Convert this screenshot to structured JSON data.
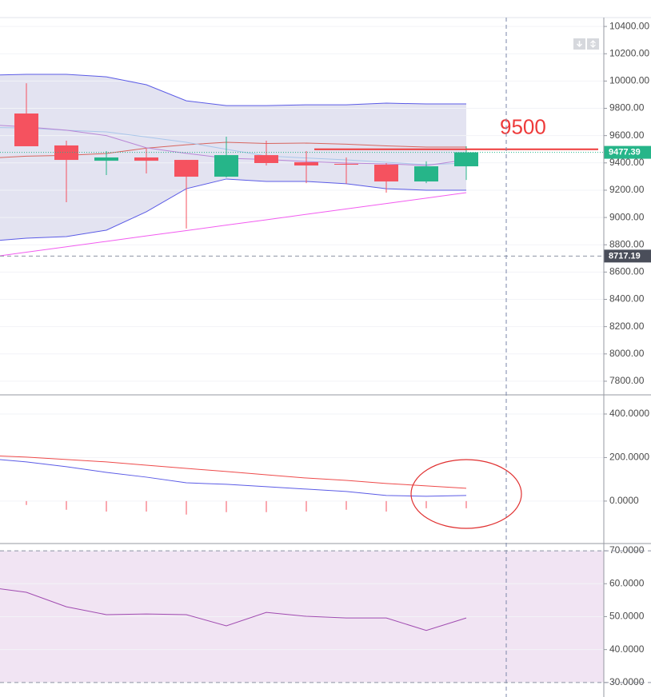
{
  "chart_data": [
    {
      "type": "candlestick",
      "categories": [
        null,
        null,
        null,
        null,
        null,
        null,
        null,
        null,
        null,
        null,
        null,
        null,
        null
      ],
      "open": [
        null,
        9762,
        9528,
        9416,
        9440,
        9422,
        9299,
        9457,
        9405,
        9393,
        9387,
        9264,
        9375
      ],
      "high": [
        null,
        9984,
        9563,
        9487,
        9504,
        9422,
        9592,
        9563,
        9487,
        9440,
        9399,
        9411,
        9522
      ],
      "low": [
        null,
        9522,
        9112,
        9311,
        9323,
        8919,
        9293,
        9381,
        9252,
        9247,
        9182,
        9252,
        9275
      ],
      "close": [
        null,
        9522,
        9422,
        9440,
        9416,
        9299,
        9457,
        9399,
        9381,
        9387,
        9264,
        9375,
        9477.39
      ],
      "up_color": "#26b589",
      "down_color": "#f5525f",
      "band_color": "#e3e3f1",
      "series": [
        {
          "role": "upper",
          "color": "#5b5be6",
          "values": [
            10043,
            10049,
            10049,
            10031,
            9973,
            9855,
            9820,
            9820,
            9826,
            9826,
            9838,
            9832,
            9832
          ]
        },
        {
          "color": "#d7655e",
          "values": [
            9434,
            9449,
            9455,
            9469,
            9508,
            9533,
            9551,
            9542,
            9545,
            9537,
            9525,
            9516,
            9516
          ]
        },
        {
          "role": "lower",
          "color": "#5b5be6",
          "values": [
            8825,
            8848,
            8860,
            8907,
            9042,
            9211,
            9282,
            9264,
            9264,
            9247,
            9211,
            9200,
            9200
          ]
        },
        {
          "color": "#a9c6ea",
          "values": [
            9660,
            9656,
            9639,
            9627,
            9590,
            9551,
            9500,
            9451,
            9436,
            9422,
            9405,
            9387,
            9399
          ]
        },
        {
          "color": "#b886d6",
          "values": [
            9680,
            9664,
            9640,
            9600,
            9511,
            9470,
            9434,
            9425,
            9410,
            9399,
            9393,
            9381,
            9422
          ]
        },
        {
          "color": "#f25cf0",
          "values": [
            8706,
            8746,
            8785,
            8825,
            8865,
            8904,
            8944,
            8983,
            9023,
            9063,
            9102,
            9142,
            9182
          ]
        }
      ],
      "last_price": 9477.39,
      "last_price_color": "#26b589",
      "marker_price": 8717.19,
      "marker_color": "#4a4e5a",
      "annotation_level": 9500,
      "annotation_color": "#ee3a3a",
      "ylim": [
        7700,
        10465
      ],
      "yticks": [
        {
          "value": 10400,
          "label": "10400.00"
        },
        {
          "value": 10200,
          "label": "10200.00"
        },
        {
          "value": 10000,
          "label": "10000.00"
        },
        {
          "value": 9800,
          "label": "9800.00"
        },
        {
          "value": 9600,
          "label": "9600.00"
        },
        {
          "value": 9400,
          "label": "9400.00"
        },
        {
          "value": 9200,
          "label": "9200.00"
        },
        {
          "value": 9000,
          "label": "9000.00"
        },
        {
          "value": 8800,
          "label": "8800.00"
        },
        {
          "value": 8600,
          "label": "8600.00"
        },
        {
          "value": 8400,
          "label": "8400.00"
        },
        {
          "value": 8200,
          "label": "8200.00"
        },
        {
          "value": 8000,
          "label": "8000.00"
        },
        {
          "value": 7800,
          "label": "7800.00"
        }
      ],
      "grid": true
    },
    {
      "type": "macd",
      "series": [
        {
          "color": "#5b5be6",
          "values": [
            196,
            180,
            158,
            132,
            110,
            84,
            77,
            66,
            55,
            44,
            26,
            22,
            26
          ]
        },
        {
          "color": "#ee4a4a",
          "values": [
            210,
            202,
            191,
            180,
            165,
            150,
            136,
            121,
            106,
            95,
            81,
            70,
            59
          ]
        }
      ],
      "histogram": {
        "color": "#f5525f",
        "values": [
          -15,
          -18,
          -40,
          -48,
          -48,
          -62,
          -51,
          -51,
          -48,
          -40,
          -48,
          -33,
          -33
        ]
      },
      "ylim": [
        -195,
        488
      ],
      "yticks": [
        {
          "value": 400,
          "label": "400.0000"
        },
        {
          "value": 200,
          "label": "200.0000"
        },
        {
          "value": 0,
          "label": "0.0000"
        }
      ],
      "grid": true
    },
    {
      "type": "rsi",
      "series": [
        {
          "color": "#a04bb0",
          "values": [
            59,
            57.4,
            53.0,
            50.6,
            50.8,
            50.6,
            47.2,
            51.3,
            50.1,
            49.6,
            49.6,
            45.8,
            49.6
          ]
        }
      ],
      "band_levels": [
        70,
        30
      ],
      "band_color": "#f1e4f3",
      "ylim": [
        25.6,
        72.2
      ],
      "yticks": [
        {
          "value": 70,
          "label": "70.0000"
        },
        {
          "value": 60,
          "label": "60.0000"
        },
        {
          "value": 50,
          "label": "50.0000"
        },
        {
          "value": 40,
          "label": "40.0000"
        },
        {
          "value": 30,
          "label": "30.0000"
        }
      ],
      "grid": true
    }
  ]
}
